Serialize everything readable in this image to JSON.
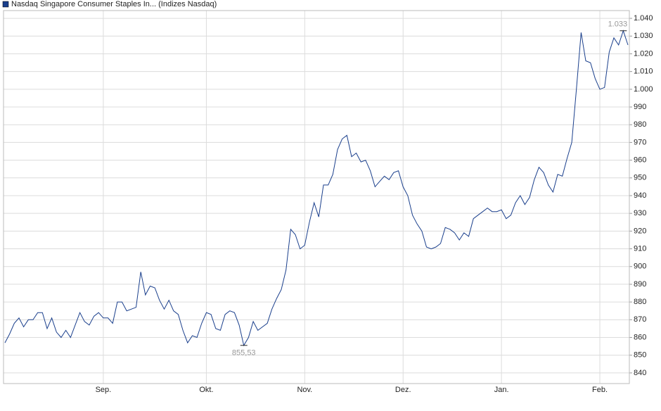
{
  "chart_data": {
    "type": "line",
    "series": [
      {
        "name": "Nasdaq Singapore Consumer Staples In... (Indizes Nasdaq)",
        "color": "#1a3f8c",
        "values": [
          857,
          862,
          868,
          871,
          866,
          870,
          870,
          874,
          874,
          865,
          871,
          863,
          860,
          864,
          860,
          867,
          874,
          869,
          867,
          872,
          874,
          871,
          871,
          868,
          880,
          880,
          875,
          876,
          877,
          897,
          884,
          889,
          888,
          881,
          876,
          881,
          875,
          873,
          864,
          857,
          861,
          860,
          868,
          874,
          873,
          865,
          864,
          873,
          875,
          874,
          867,
          855.53,
          860,
          869,
          864,
          866,
          868,
          876,
          882,
          887,
          898,
          921,
          918,
          910,
          912,
          925,
          936,
          928,
          946,
          946,
          952,
          966,
          972,
          974,
          962,
          964,
          959,
          960,
          954,
          945,
          948,
          951,
          949,
          953,
          954,
          945,
          940,
          929,
          924,
          920,
          911,
          910,
          911,
          913,
          922,
          921,
          919,
          915,
          919,
          917,
          927,
          929,
          931,
          933,
          931,
          931,
          932,
          927,
          929,
          936,
          940,
          935,
          939,
          949,
          956,
          953,
          946,
          942,
          952,
          951,
          961,
          970,
          1000,
          1032,
          1016,
          1015,
          1006,
          1000,
          1001,
          1021,
          1029,
          1025,
          1033,
          1025
        ],
        "value_labels": [
          null,
          null,
          null,
          null,
          null,
          null,
          null,
          null,
          null,
          null,
          null,
          null,
          null,
          null,
          null,
          null,
          null,
          null,
          null,
          null,
          null,
          null,
          null,
          null,
          null,
          null,
          null,
          null,
          null,
          null,
          null,
          null,
          null,
          null,
          null,
          null,
          null,
          null,
          null,
          null,
          null,
          null,
          null,
          null,
          null,
          null,
          null,
          null,
          null,
          null,
          null,
          "855,53",
          null,
          null,
          null,
          null,
          null,
          null,
          null,
          null,
          null,
          null,
          null,
          null,
          null,
          null,
          null,
          null,
          null,
          null,
          null,
          null,
          null,
          null,
          null,
          null,
          null,
          null,
          null,
          null,
          null,
          null,
          null,
          null,
          null,
          null,
          null,
          null,
          null,
          null,
          null,
          null,
          null,
          null,
          null,
          null,
          null,
          null,
          null,
          null,
          null,
          null,
          null,
          null,
          null,
          null,
          null,
          null,
          null,
          null,
          null,
          null,
          null,
          null,
          null,
          null,
          null,
          null,
          null,
          null,
          null,
          null,
          null,
          null,
          null,
          null,
          null,
          null,
          null,
          null,
          null,
          null,
          "1.033",
          null
        ]
      }
    ],
    "categories": [
      null,
      null,
      null,
      null,
      null,
      null,
      null,
      null,
      null,
      null,
      null,
      null,
      null,
      null,
      null,
      null,
      null,
      null,
      null,
      null,
      null,
      "Sep.",
      null,
      null,
      null,
      null,
      null,
      null,
      null,
      null,
      null,
      null,
      null,
      null,
      null,
      null,
      null,
      null,
      null,
      null,
      null,
      null,
      null,
      "Okt.",
      null,
      null,
      null,
      null,
      null,
      null,
      null,
      null,
      null,
      null,
      null,
      null,
      null,
      null,
      null,
      null,
      null,
      null,
      null,
      null,
      "Nov.",
      null,
      null,
      null,
      null,
      null,
      null,
      null,
      null,
      null,
      null,
      null,
      null,
      null,
      null,
      null,
      null,
      null,
      null,
      null,
      null,
      "Dez.",
      null,
      null,
      null,
      null,
      null,
      null,
      null,
      null,
      null,
      null,
      null,
      null,
      null,
      null,
      null,
      null,
      null,
      null,
      null,
      null,
      "Jan.",
      null,
      null,
      null,
      null,
      null,
      null,
      null,
      null,
      null,
      null,
      null,
      null,
      null,
      null,
      null,
      null,
      null,
      null,
      null,
      null,
      "Feb.",
      null,
      null,
      null,
      null,
      null,
      null
    ],
    "ylim": [
      834,
      1044.4
    ],
    "yticks": [
      840,
      850,
      860,
      870,
      880,
      890,
      900,
      910,
      920,
      930,
      940,
      950,
      960,
      970,
      980,
      990,
      {
        "value": 1000,
        "label": "1.000"
      },
      {
        "value": 1010,
        "label": "1.010"
      },
      {
        "value": 1020,
        "label": "1.020"
      },
      {
        "value": 1030,
        "label": "1.030"
      },
      {
        "value": 1040,
        "label": "1.040"
      }
    ],
    "grid": true
  }
}
